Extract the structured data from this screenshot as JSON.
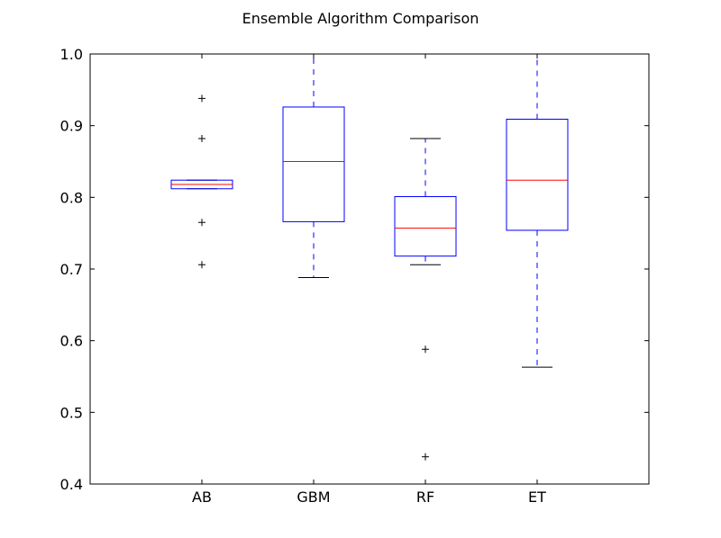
{
  "chart_data": {
    "type": "box",
    "title": "Ensemble Algorithm Comparison",
    "xlabel": "",
    "ylabel": "",
    "ylim": [
      0.4,
      1.0
    ],
    "yticks": [
      0.4,
      0.5,
      0.6,
      0.7,
      0.8,
      0.9,
      1.0
    ],
    "ytick_labels": [
      "0.4",
      "0.5",
      "0.6",
      "0.7",
      "0.8",
      "0.9",
      "1.0"
    ],
    "categories": [
      "AB",
      "GBM",
      "RF",
      "ET"
    ],
    "boxes": [
      {
        "name": "AB",
        "whisker_low": 0.812,
        "q1": 0.812,
        "median": 0.818,
        "q3": 0.824,
        "whisker_high": 0.824,
        "outliers": [
          0.706,
          0.765,
          0.882,
          0.938
        ]
      },
      {
        "name": "GBM",
        "whisker_low": 0.688,
        "q1": 0.766,
        "median": 0.85,
        "q3": 0.926,
        "whisker_high": 1.0,
        "outliers": []
      },
      {
        "name": "RF",
        "whisker_low": 0.706,
        "q1": 0.718,
        "median": 0.757,
        "q3": 0.801,
        "whisker_high": 0.882,
        "outliers": [
          0.438,
          0.588
        ]
      },
      {
        "name": "ET",
        "whisker_low": 0.563,
        "q1": 0.754,
        "median": 0.824,
        "q3": 0.909,
        "whisker_high": 1.0,
        "outliers": []
      }
    ],
    "grid": false,
    "colors": {
      "box": "#0000ff",
      "median": "#ff0000",
      "whisker": "#0000ff",
      "cap": "#000000",
      "flier": "#000000",
      "axes": "#000000"
    }
  }
}
